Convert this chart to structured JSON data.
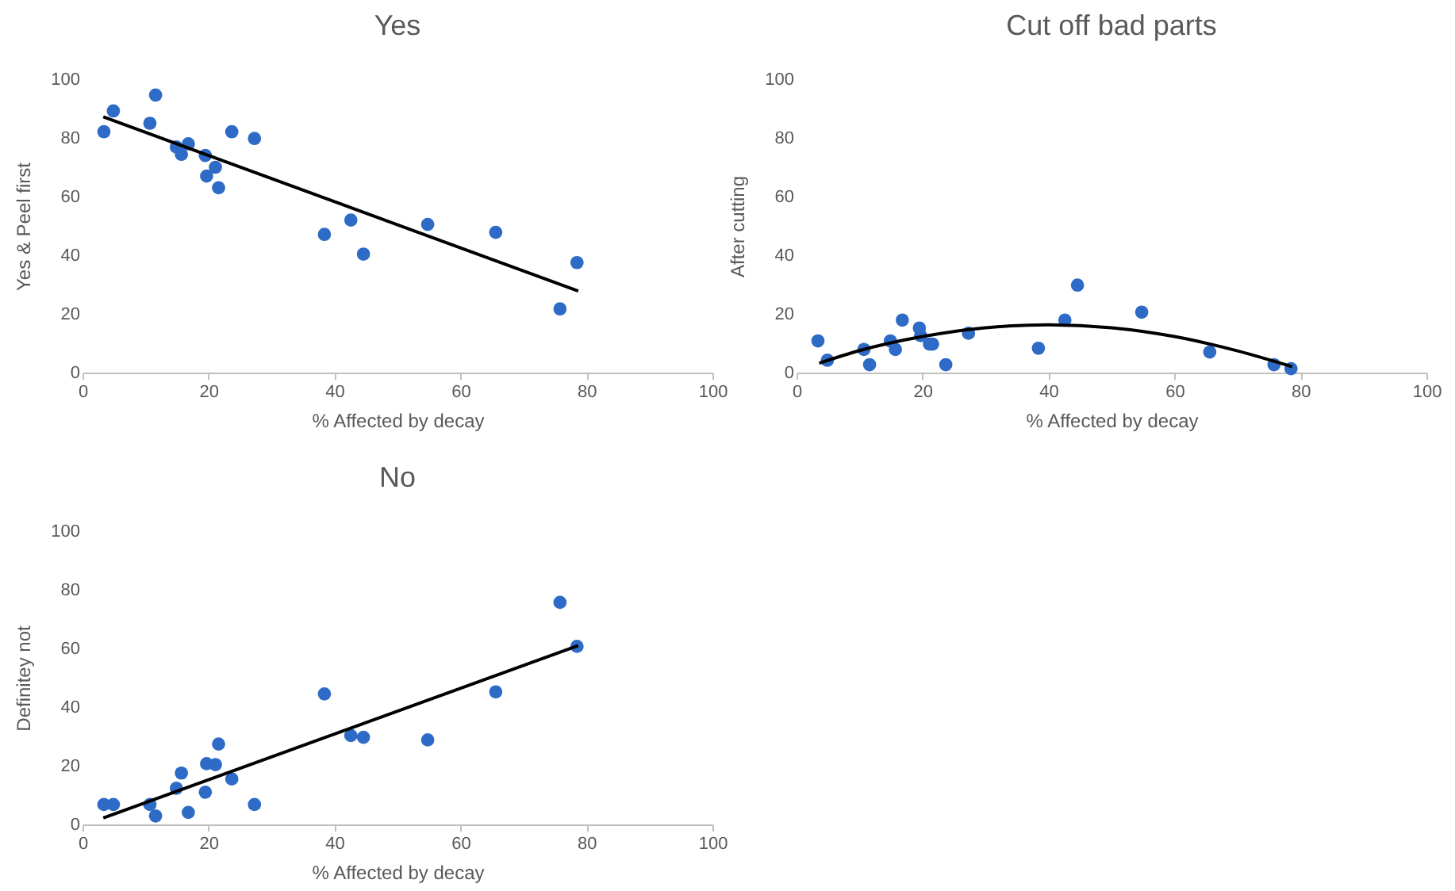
{
  "chart_data": [
    {
      "type": "scatter",
      "title": "Yes",
      "xlabel": "% Affected by decay",
      "ylabel": "Yes & Peel first",
      "xlim": [
        0,
        100
      ],
      "ylim": [
        0,
        100
      ],
      "xticks": [
        0,
        20,
        40,
        60,
        80,
        100
      ],
      "yticks": [
        0,
        20,
        40,
        60,
        80,
        100
      ],
      "x": [
        3.4,
        4.9,
        10.7,
        11.6,
        14.9,
        15.7,
        16.8,
        19.5,
        19.7,
        21.1,
        21.6,
        23.7,
        27.3,
        38.4,
        42.6,
        44.6,
        54.8,
        65.6,
        75.8,
        78.5
      ],
      "series": [
        {
          "marker": "circle",
          "color": "#2e6bc6",
          "values": [
            82.1,
            89.2,
            85,
            94.6,
            76.9,
            74.4,
            78,
            74,
            67,
            70,
            63,
            82.1,
            79.8,
            47.1,
            52,
            40.4,
            50.5,
            47.8,
            21.7,
            37.5
          ]
        },
        {
          "type": "line",
          "color": "#000000",
          "x": [
            3.3,
            78.7
          ],
          "values": [
            87.2,
            27.8
          ]
        }
      ]
    },
    {
      "type": "scatter",
      "title": "Cut off bad parts",
      "xlabel": "% Affected by decay",
      "ylabel": "After cutting",
      "xlim": [
        0,
        100
      ],
      "ylim": [
        0,
        100
      ],
      "xticks": [
        0,
        20,
        40,
        60,
        80,
        100
      ],
      "yticks": [
        0,
        20,
        40,
        60,
        80,
        100
      ],
      "x": [
        3.4,
        4.9,
        10.7,
        11.6,
        14.9,
        15.7,
        16.8,
        19.5,
        19.7,
        21.1,
        21.6,
        23.7,
        27.3,
        38.4,
        42.6,
        44.6,
        54.8,
        65.6,
        75.8,
        78.5
      ],
      "series": [
        {
          "marker": "circle",
          "color": "#2e6bc6",
          "values": [
            10.8,
            4.2,
            7.9,
            2.7,
            10.8,
            7.9,
            17.9,
            15.2,
            12.6,
            9.7,
            9.7,
            2.7,
            13.4,
            8.3,
            17.9,
            29.8,
            20.6,
            7,
            2.7,
            1.3
          ]
        },
        {
          "type": "line",
          "color": "#000000",
          "x": [
            3.6,
            10,
            20,
            30,
            40,
            50,
            60,
            70,
            78.7
          ],
          "values": [
            3.2,
            7.5,
            12.3,
            15.3,
            16.3,
            15.3,
            12.3,
            7.4,
            2
          ]
        }
      ]
    },
    {
      "type": "scatter",
      "title": "No",
      "xlabel": "% Affected by decay",
      "ylabel": "Definitey not",
      "xlim": [
        0,
        100
      ],
      "ylim": [
        0,
        100
      ],
      "xticks": [
        0,
        20,
        40,
        60,
        80,
        100
      ],
      "yticks": [
        0,
        20,
        40,
        60,
        80,
        100
      ],
      "x": [
        3.4,
        4.9,
        10.7,
        11.6,
        14.9,
        15.7,
        16.8,
        19.5,
        19.7,
        21.1,
        21.6,
        23.7,
        27.3,
        38.4,
        42.6,
        44.6,
        54.8,
        65.6,
        75.8,
        78.5
      ],
      "series": [
        {
          "marker": "circle",
          "color": "#2e6bc6",
          "values": [
            6.8,
            6.8,
            6.8,
            2.9,
            12.3,
            17.5,
            4.1,
            11,
            20.7,
            20.4,
            27.4,
            15.5,
            6.8,
            44.5,
            30.3,
            29.7,
            28.8,
            45.2,
            75.7,
            60.7
          ]
        },
        {
          "type": "line",
          "color": "#000000",
          "x": [
            3.3,
            78.7
          ],
          "values": [
            2.2,
            61
          ]
        }
      ]
    }
  ]
}
